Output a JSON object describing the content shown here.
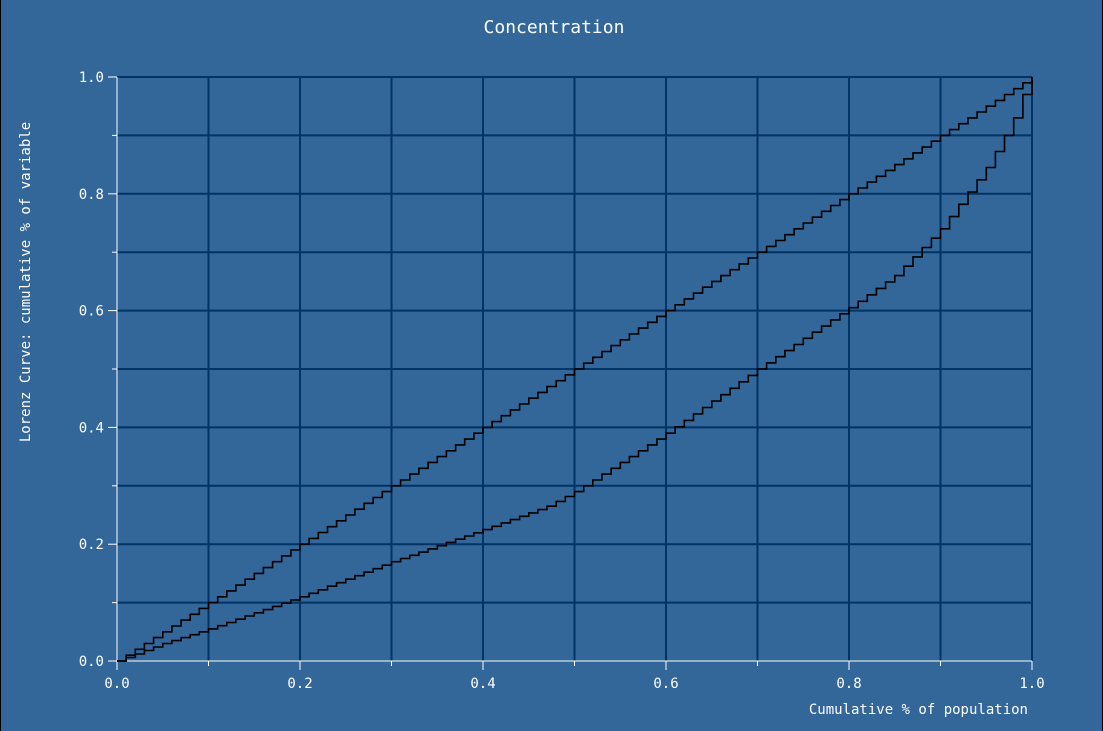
{
  "chart_data": {
    "type": "line",
    "title": "Concentration",
    "xlabel": "Cumulative % of population",
    "ylabel": "Lorenz Curve: cumulative % of variable",
    "xlim": [
      0.0,
      1.0
    ],
    "ylim": [
      0.0,
      1.0
    ],
    "x_ticks": [
      "0.0",
      "0.2",
      "0.4",
      "0.6",
      "0.8",
      "1.0"
    ],
    "y_ticks": [
      "0.0",
      "0.2",
      "0.4",
      "0.6",
      "0.8",
      "1.0"
    ],
    "grid": true,
    "step_count": 100,
    "colors": {
      "background": "#336699",
      "grid": "#003366",
      "axis": "#ffffff",
      "series": "#000000",
      "text": "#ffffff"
    },
    "series": [
      {
        "x": [
          0.0,
          0.1,
          0.2,
          0.3,
          0.4,
          0.5,
          0.6,
          0.7,
          0.8,
          0.9,
          1.0
        ],
        "y": [
          0.0,
          0.1,
          0.2,
          0.3,
          0.4,
          0.5,
          0.6,
          0.7,
          0.8,
          0.9,
          1.0
        ]
      },
      {
        "x": [
          0.0,
          0.05,
          0.1,
          0.2,
          0.3,
          0.4,
          0.47,
          0.5,
          0.6,
          0.7,
          0.8,
          0.85,
          0.9,
          0.95,
          0.97,
          0.98,
          0.99,
          1.0
        ],
        "y": [
          0.0,
          0.03,
          0.055,
          0.11,
          0.17,
          0.225,
          0.265,
          0.29,
          0.39,
          0.5,
          0.605,
          0.66,
          0.74,
          0.845,
          0.9,
          0.93,
          0.97,
          1.0
        ]
      }
    ]
  }
}
